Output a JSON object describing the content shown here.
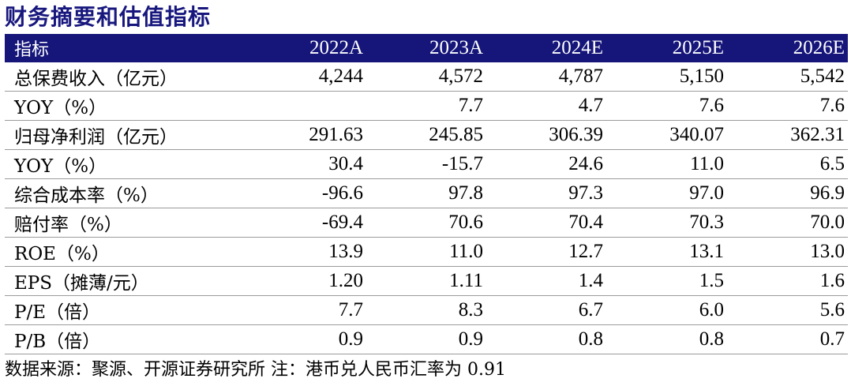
{
  "title": "财务摘要和估值指标",
  "table": {
    "headers": [
      "指标",
      "2022A",
      "2023A",
      "2024E",
      "2025E",
      "2026E"
    ],
    "rows": [
      {
        "label": "总保费收入（亿元）",
        "values": [
          "4,244",
          "4,572",
          "4,787",
          "5,150",
          "5,542"
        ]
      },
      {
        "label": "YOY（%）",
        "values": [
          "",
          "7.7",
          "4.7",
          "7.6",
          "7.6"
        ]
      },
      {
        "label": "归母净利润（亿元）",
        "values": [
          "291.63",
          "245.85",
          "306.39",
          "340.07",
          "362.31"
        ]
      },
      {
        "label": "YOY（%）",
        "values": [
          "30.4",
          "-15.7",
          "24.6",
          "11.0",
          "6.5"
        ]
      },
      {
        "label": "综合成本率（%）",
        "values": [
          "-96.6",
          "97.8",
          "97.3",
          "97.0",
          "96.9"
        ]
      },
      {
        "label": "赔付率（%）",
        "values": [
          "-69.4",
          "70.6",
          "70.4",
          "70.3",
          "70.0"
        ]
      },
      {
        "label": "ROE（%）",
        "values": [
          "13.9",
          "11.0",
          "12.7",
          "13.1",
          "13.0"
        ]
      },
      {
        "label": "EPS（摊薄/元）",
        "values": [
          "1.20",
          "1.11",
          "1.4",
          "1.5",
          "1.6"
        ]
      },
      {
        "label": "P/E（倍）",
        "values": [
          "7.7",
          "8.3",
          "6.7",
          "6.0",
          "5.6"
        ]
      },
      {
        "label": "P/B（倍）",
        "values": [
          "0.9",
          "0.9",
          "0.8",
          "0.8",
          "0.7"
        ]
      }
    ]
  },
  "source": "数据来源：聚源、开源证券研究所 注：港币兑人民币汇率为 0.91",
  "colors": {
    "title": "#17177e",
    "header_bg": "#15157a",
    "header_text": "#ffffff",
    "row_rule": "#9a9a9a"
  }
}
